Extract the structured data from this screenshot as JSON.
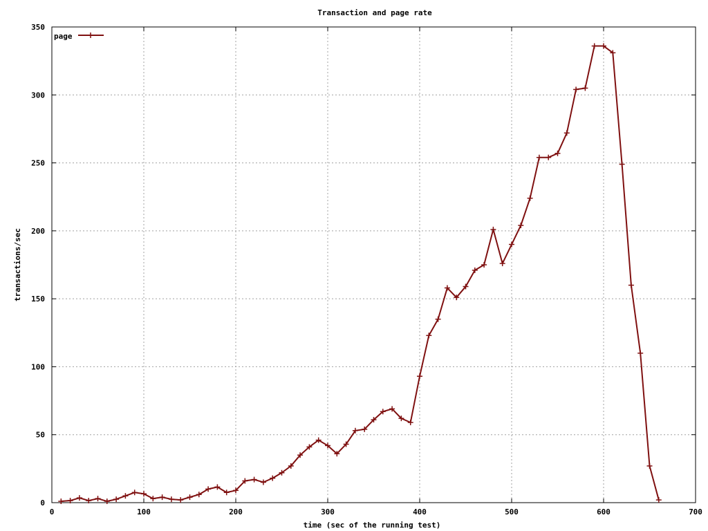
{
  "chart_data": {
    "type": "line",
    "title": "Transaction and page rate",
    "xlabel": "time (sec of the running test)",
    "ylabel": "transactions/sec",
    "xlim": [
      0,
      700
    ],
    "ylim": [
      0,
      350
    ],
    "xticks": [
      0,
      100,
      200,
      300,
      400,
      500,
      600,
      700
    ],
    "yticks": [
      0,
      50,
      100,
      150,
      200,
      250,
      300,
      350
    ],
    "grid": true,
    "legend_position": "top-left",
    "series": [
      {
        "name": "page",
        "color": "#7f1010",
        "marker": "plus",
        "x": [
          10,
          20,
          30,
          40,
          50,
          60,
          70,
          80,
          90,
          100,
          110,
          120,
          130,
          140,
          150,
          160,
          170,
          180,
          190,
          200,
          210,
          220,
          230,
          240,
          250,
          260,
          270,
          280,
          290,
          300,
          310,
          320,
          330,
          340,
          350,
          360,
          370,
          380,
          390,
          400,
          410,
          420,
          430,
          440,
          450,
          460,
          470,
          480,
          490,
          500,
          510,
          520,
          530,
          540,
          550,
          560,
          570,
          580,
          590,
          600,
          610,
          620,
          630,
          640,
          650,
          660
        ],
        "y": [
          1,
          1.5,
          3.5,
          1.5,
          3,
          1,
          2.5,
          5,
          7.5,
          6.5,
          3,
          4,
          2.5,
          2,
          4,
          6,
          10,
          11.5,
          7.5,
          9,
          16,
          17,
          15,
          18,
          22,
          27,
          35,
          41,
          46,
          42,
          36,
          43,
          53,
          54,
          61,
          67,
          69,
          62,
          59,
          93,
          123,
          135,
          158,
          151,
          159,
          171,
          175,
          201,
          176,
          190,
          204,
          224,
          254,
          254,
          257,
          272,
          304,
          305,
          336,
          336,
          331,
          249,
          160,
          110,
          27,
          2
        ]
      }
    ]
  }
}
